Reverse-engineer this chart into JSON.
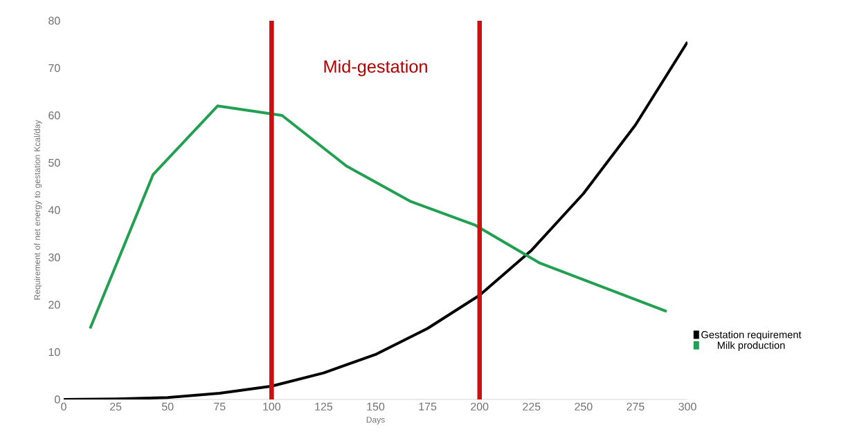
{
  "chart_data": {
    "type": "line",
    "xlabel": "Days",
    "ylabel": "Requirement of net energy to gestation Kcal/day",
    "xlim": [
      0,
      300
    ],
    "ylim": [
      0,
      80
    ],
    "xticks": [
      0,
      25,
      50,
      75,
      100,
      125,
      150,
      175,
      200,
      225,
      250,
      275,
      300
    ],
    "yticks": [
      0,
      10,
      20,
      30,
      40,
      50,
      60,
      70,
      80
    ],
    "series": [
      {
        "name": "Gestation requirement",
        "color": "#000000",
        "x": [
          0,
          25,
          50,
          75,
          100,
          125,
          150,
          175,
          200,
          225,
          250,
          275,
          300
        ],
        "values": [
          0,
          0.1,
          0.4,
          1.3,
          2.8,
          5.6,
          9.5,
          15,
          22,
          31.5,
          43.5,
          58,
          75.5
        ]
      },
      {
        "name": "Milk production",
        "color": "#20a050",
        "x": [
          12.7,
          43,
          74,
          105,
          136,
          167,
          198,
          229,
          290
        ],
        "values": [
          15,
          47.5,
          62,
          60,
          49.3,
          41.8,
          36.8,
          28.8,
          18.6
        ]
      }
    ],
    "ref_lines": [
      {
        "axis": "x",
        "value": 100,
        "color": "#cc1111"
      },
      {
        "axis": "x",
        "value": 200,
        "color": "#cc1111"
      }
    ],
    "annotations": [
      "Mid-gestation"
    ],
    "grid": false,
    "legend": "right",
    "marker": "none",
    "line_style": "solid"
  }
}
